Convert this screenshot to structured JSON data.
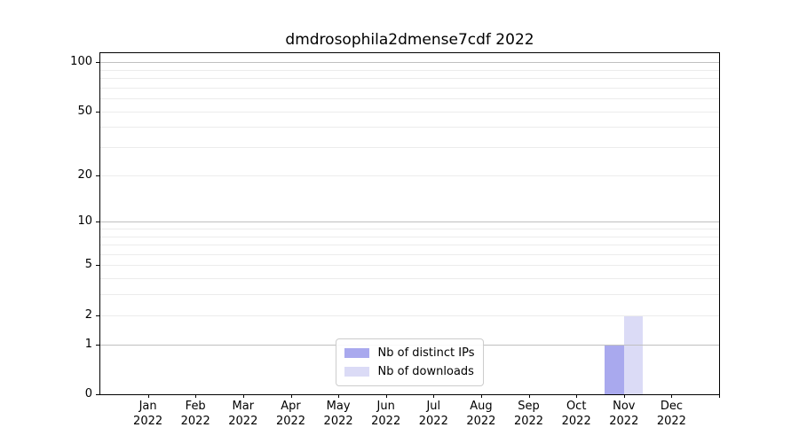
{
  "chart_data": {
    "type": "bar",
    "title": "dmdrosophila2dmense7cdf 2022",
    "categories": [
      "Jan",
      "Feb",
      "Mar",
      "Apr",
      "May",
      "Jun",
      "Jul",
      "Aug",
      "Sep",
      "Oct",
      "Nov",
      "Dec"
    ],
    "category_year": "2022",
    "series": [
      {
        "name": "Nb of distinct IPs",
        "color": "#a9a9ee",
        "values": [
          0,
          0,
          0,
          0,
          0,
          0,
          0,
          0,
          0,
          0,
          1,
          0
        ]
      },
      {
        "name": "Nb of downloads",
        "color": "#dbdbf6",
        "values": [
          0,
          0,
          0,
          0,
          0,
          0,
          0,
          0,
          0,
          0,
          2,
          0
        ]
      }
    ],
    "yscale": "log1p",
    "y_major_ticks": [
      0,
      1,
      2,
      5,
      10,
      20,
      50,
      100
    ],
    "y_minor_gridlines": [
      3,
      4,
      6,
      7,
      8,
      9,
      30,
      40,
      60,
      70,
      80,
      90
    ],
    "ylim": [
      0,
      113
    ],
    "grid": "horizontal",
    "legend_position": "lower center",
    "colors": {
      "power10_gridline": "#c0c0c0",
      "minor_gridline": "#ececec",
      "axis": "#000000",
      "background": "#ffffff"
    }
  }
}
